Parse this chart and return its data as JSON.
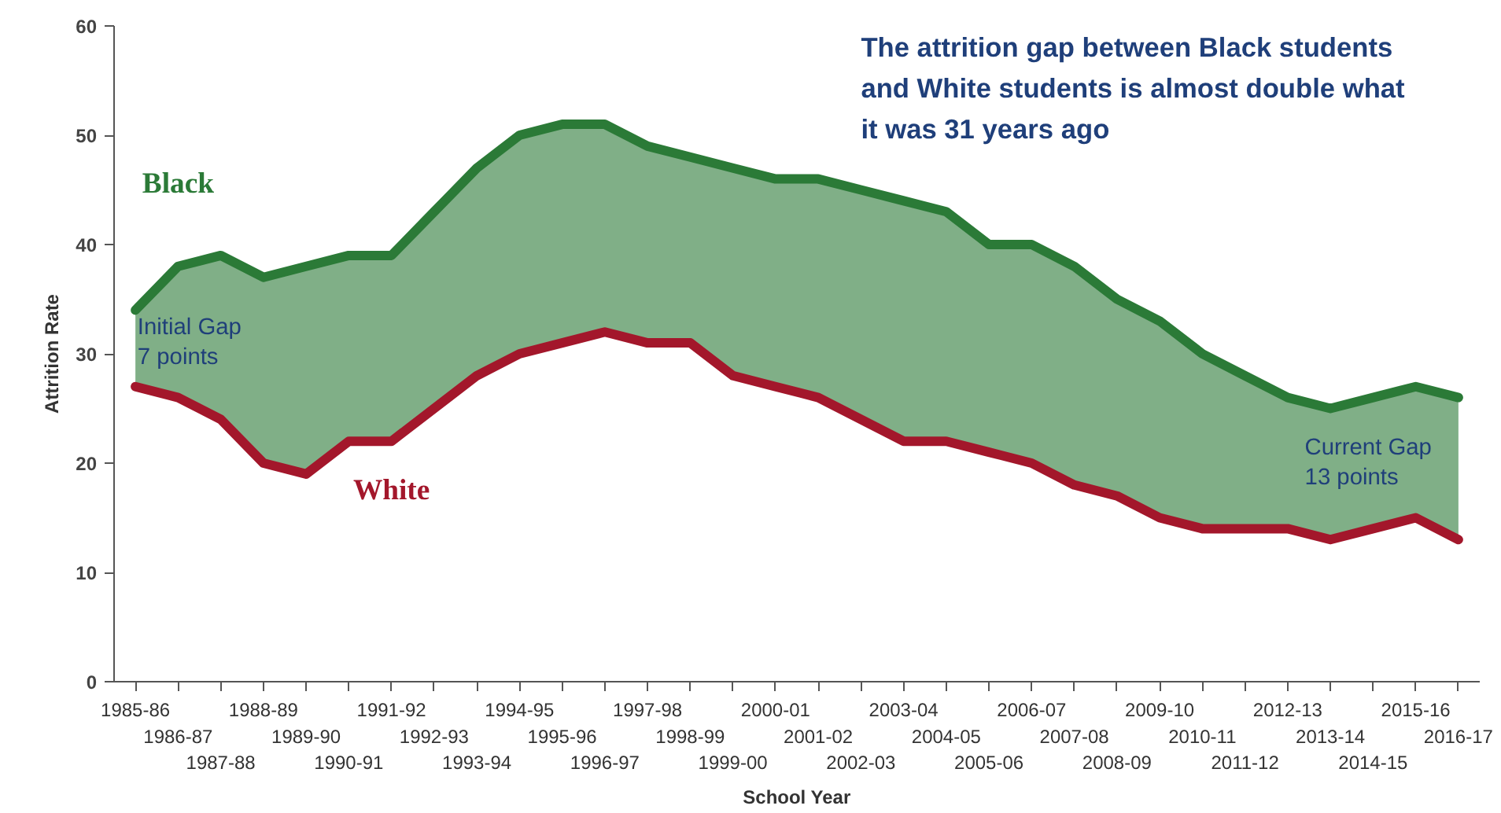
{
  "chart_data": {
    "type": "line",
    "title": "The attrition gap between Black students\nand White students is almost double what\nit was 31 years ago",
    "xlabel": "School Year",
    "ylabel": "Attrition Rate",
    "categories": [
      "1985-86",
      "1986-87",
      "1987-88",
      "1988-89",
      "1989-90",
      "1990-91",
      "1991-92",
      "1992-93",
      "1993-94",
      "1994-95",
      "1995-96",
      "1996-97",
      "1997-98",
      "1998-99",
      "1999-00",
      "2000-01",
      "2001-02",
      "2002-03",
      "2003-04",
      "2004-05",
      "2005-06",
      "2006-07",
      "2007-08",
      "2008-09",
      "2009-10",
      "2010-11",
      "2011-12",
      "2012-13",
      "2013-14",
      "2014-15",
      "2015-16",
      "2016-17"
    ],
    "series": [
      {
        "name": "Black",
        "color": "#2b7a37",
        "values": [
          34,
          38,
          39,
          37,
          38,
          39,
          39,
          43,
          47,
          50,
          51,
          51,
          49,
          48,
          47,
          46,
          46,
          45,
          44,
          43,
          40,
          40,
          38,
          35,
          33,
          30,
          28,
          26,
          25,
          26,
          27,
          26
        ]
      },
      {
        "name": "White",
        "color": "#a3172b",
        "values": [
          27,
          26,
          24,
          20,
          19,
          22,
          22,
          25,
          28,
          30,
          31,
          32,
          31,
          31,
          28,
          27,
          26,
          24,
          22,
          22,
          21,
          20,
          18,
          17,
          15,
          14,
          14,
          14,
          13,
          14,
          15,
          13
        ]
      }
    ],
    "ylim": [
      0,
      60
    ],
    "yticks": [
      0,
      10,
      20,
      30,
      40,
      50,
      60
    ],
    "grid": false,
    "line_style": "solid",
    "marker": "none",
    "annotations": [
      "Initial Gap\n7 points",
      "Current Gap\n13 points"
    ]
  }
}
